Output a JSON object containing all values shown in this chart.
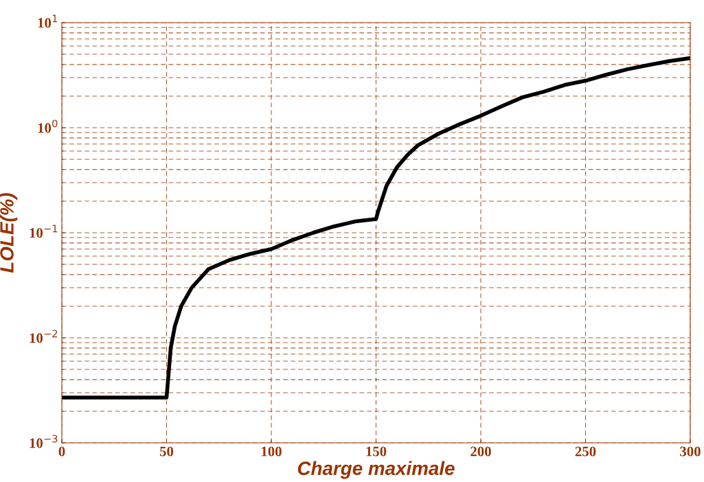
{
  "chart_data": {
    "type": "line",
    "xlabel": "Charge maximale",
    "ylabel": "LOLE(%)",
    "log": "y",
    "grid": true,
    "line_style": "solid",
    "marker": "none",
    "xlim": [
      0,
      300
    ],
    "xticks": [
      0,
      50,
      100,
      150,
      200,
      250,
      300
    ],
    "ylim": [
      0.001,
      10
    ],
    "yticks": [
      {
        "value": 0.001,
        "label": "10$^{−3}$"
      },
      {
        "value": 0.01,
        "label": "10$^{−2}$"
      },
      {
        "value": 0.1,
        "label": "10$^{−1}$"
      },
      {
        "value": 1,
        "label": "10$^{0}$"
      },
      {
        "value": 10,
        "label": "10$^{1}$"
      }
    ],
    "series": [
      {
        "color": "#000000",
        "x": [
          0,
          10,
          20,
          30,
          40,
          50,
          52,
          54,
          57,
          62,
          70,
          80,
          90,
          100,
          110,
          120,
          130,
          140,
          150,
          151,
          155,
          160,
          165,
          170,
          180,
          190,
          200,
          210,
          220,
          230,
          240,
          250,
          260,
          270,
          280,
          290,
          300
        ],
        "values": [
          0.0027,
          0.0027,
          0.0027,
          0.0027,
          0.0027,
          0.0027,
          0.008,
          0.013,
          0.02,
          0.03,
          0.045,
          0.055,
          0.063,
          0.07,
          0.085,
          0.1,
          0.115,
          0.128,
          0.135,
          0.16,
          0.28,
          0.42,
          0.55,
          0.68,
          0.88,
          1.08,
          1.3,
          1.6,
          1.95,
          2.2,
          2.55,
          2.8,
          3.2,
          3.6,
          3.95,
          4.3,
          4.6
        ]
      }
    ]
  }
}
